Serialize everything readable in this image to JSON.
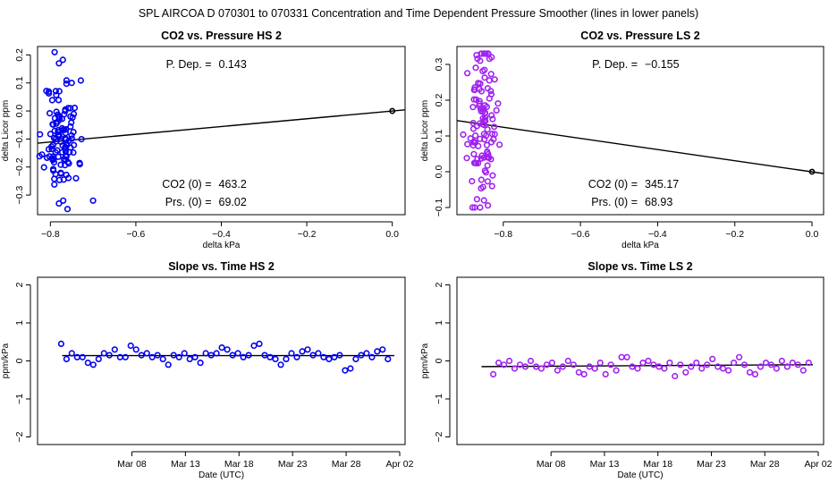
{
  "header": {
    "title": "SPL   AIRCOA D   070301 to 070331   Concentration and Time Dependent Pressure Smoother (lines in lower panels)"
  },
  "colors": {
    "hs": "#0000ee",
    "ls": "#a020f0",
    "line": "#000000"
  },
  "chart_data": [
    {
      "id": "co2_hs",
      "type": "scatter",
      "title": "CO2 vs. Pressure HS 2",
      "xlabel": "delta kPa",
      "ylabel": "delta Licor ppm",
      "xlim": [
        -0.83,
        0.03
      ],
      "ylim": [
        -0.37,
        0.23
      ],
      "xticks": [
        -0.8,
        -0.6,
        -0.4,
        -0.2,
        0.0
      ],
      "xtick_labels": [
        "−0.8",
        "−0.6",
        "−0.4",
        "−0.2",
        "0.0"
      ],
      "yticks": [
        -0.3,
        -0.2,
        -0.1,
        0.0,
        0.1,
        0.2
      ],
      "ytick_labels": [
        "−0.3",
        "−0.2",
        "−0.1",
        "0.0",
        "0.1",
        "0.2"
      ],
      "color_key": "hs",
      "fit_line": {
        "x": [
          -0.83,
          0.03
        ],
        "y": [
          -0.115,
          0.004
        ]
      },
      "origin_marker": {
        "x": 0.0,
        "y": 0.0
      },
      "cluster": {
        "x_mean": -0.775,
        "x_sd": 0.02,
        "y_mean": -0.09,
        "y_sd": 0.1,
        "count": 110,
        "seed": 11
      },
      "points": [
        {
          "x": -0.79,
          "y": 0.21
        },
        {
          "x": -0.78,
          "y": 0.17
        },
        {
          "x": -0.75,
          "y": 0.1
        },
        {
          "x": -0.7,
          "y": -0.32
        },
        {
          "x": -0.74,
          "y": -0.24
        },
        {
          "x": -0.77,
          "y": -0.32
        },
        {
          "x": -0.76,
          "y": -0.35
        },
        {
          "x": -0.78,
          "y": -0.33
        }
      ],
      "annotations": [
        {
          "label": "P. Dep. =",
          "value": "0.143",
          "pos": "top"
        },
        {
          "label": "CO2 (0) =",
          "value": "463.2",
          "pos": "bottom1"
        },
        {
          "label": "Prs. (0) =",
          "value": "69.02",
          "pos": "bottom2"
        }
      ]
    },
    {
      "id": "co2_ls",
      "type": "scatter",
      "title": "CO2 vs. Pressure LS 2",
      "xlabel": "delta kPa",
      "ylabel": "delta Licor ppm",
      "xlim": [
        -0.92,
        0.03
      ],
      "ylim": [
        -0.12,
        0.35
      ],
      "xticks": [
        -0.8,
        -0.6,
        -0.4,
        -0.2,
        0.0
      ],
      "xtick_labels": [
        "−0.8",
        "−0.6",
        "−0.4",
        "−0.2",
        "0.0"
      ],
      "yticks": [
        -0.1,
        0.0,
        0.1,
        0.2,
        0.3
      ],
      "ytick_labels": [
        "−0.1",
        "0.0",
        "0.1",
        "0.2",
        "0.3"
      ],
      "color_key": "ls",
      "fit_line": {
        "x": [
          -0.92,
          0.03
        ],
        "y": [
          0.143,
          -0.005
        ]
      },
      "origin_marker": {
        "x": 0.0,
        "y": 0.0
      },
      "cluster": {
        "x_mean": -0.855,
        "x_sd": 0.018,
        "y_mean": 0.13,
        "y_sd": 0.1,
        "count": 110,
        "seed": 23
      },
      "points": [
        {
          "x": -0.83,
          "y": 0.32
        },
        {
          "x": -0.84,
          "y": 0.33
        },
        {
          "x": -0.86,
          "y": 0.31
        },
        {
          "x": -0.88,
          "y": -0.1
        },
        {
          "x": -0.86,
          "y": -0.1
        },
        {
          "x": -0.85,
          "y": -0.08
        }
      ],
      "annotations": [
        {
          "label": "P. Dep. =",
          "value": "−0.155",
          "pos": "top"
        },
        {
          "label": "CO2 (0) =",
          "value": "345.17",
          "pos": "bottom1"
        },
        {
          "label": "Prs. (0) =",
          "value": "68.93",
          "pos": "bottom2"
        }
      ]
    },
    {
      "id": "slope_hs",
      "type": "scatter",
      "title": "Slope vs. Time HS 2",
      "xlabel": "Date (UTC)",
      "ylabel": "ppm/kPa",
      "xlim": [
        -1.8,
        32.5
      ],
      "ylim": [
        -2.2,
        2.2
      ],
      "xticks": [
        7,
        12,
        17,
        22,
        27,
        32
      ],
      "xtick_labels": [
        "Mar 08",
        "Mar 13",
        "Mar 18",
        "Mar 23",
        "Mar 28",
        "Apr 02"
      ],
      "yticks": [
        -2,
        -1,
        0,
        1,
        2
      ],
      "ytick_labels": [
        "−2",
        "−1",
        "0",
        "1",
        "2"
      ],
      "color_key": "hs",
      "fit_line": {
        "x": [
          0.5,
          31.5
        ],
        "y": [
          0.14,
          0.14
        ]
      },
      "series": {
        "x_start": 0.4,
        "x_step": 0.5,
        "count": 62,
        "values": [
          0.45,
          0.05,
          0.2,
          0.1,
          0.1,
          -0.05,
          -0.1,
          0.05,
          0.2,
          0.15,
          0.3,
          0.1,
          0.1,
          0.4,
          0.3,
          0.15,
          0.2,
          0.1,
          0.15,
          0.05,
          -0.1,
          0.15,
          0.1,
          0.2,
          0.05,
          0.1,
          -0.05,
          0.2,
          0.15,
          0.2,
          0.35,
          0.3,
          0.15,
          0.2,
          0.1,
          0.15,
          0.4,
          0.45,
          0.15,
          0.1,
          0.05,
          -0.1,
          0.05,
          0.2,
          0.1,
          0.25,
          0.3,
          0.15,
          0.2,
          0.1,
          0.05,
          0.1,
          0.15,
          -0.25,
          -0.2,
          0.05,
          0.15,
          0.2,
          0.1,
          0.25,
          0.3,
          0.05
        ]
      }
    },
    {
      "id": "slope_ls",
      "type": "scatter",
      "title": "Slope vs. Time LS 2",
      "xlabel": "Date (UTC)",
      "ylabel": "ppm/kPa",
      "xlim": [
        -1.8,
        32.5
      ],
      "ylim": [
        -2.2,
        2.2
      ],
      "xticks": [
        7,
        12,
        17,
        22,
        27,
        32
      ],
      "xtick_labels": [
        "Mar 08",
        "Mar 13",
        "Mar 18",
        "Mar 23",
        "Mar 28",
        "Apr 02"
      ],
      "yticks": [
        -2,
        -1,
        0,
        1,
        2
      ],
      "ytick_labels": [
        "−2",
        "−1",
        "0",
        "1",
        "2"
      ],
      "color_key": "ls",
      "fit_line": {
        "x": [
          0.5,
          31.5
        ],
        "y": [
          -0.15,
          -0.1
        ]
      },
      "series": {
        "x_start": 1.6,
        "x_step": 0.5,
        "count": 60,
        "values": [
          -0.35,
          -0.05,
          -0.1,
          0.0,
          -0.2,
          -0.1,
          -0.15,
          0.0,
          -0.15,
          -0.2,
          -0.1,
          -0.05,
          -0.25,
          -0.15,
          0.0,
          -0.1,
          -0.3,
          -0.35,
          -0.15,
          -0.2,
          -0.05,
          -0.35,
          -0.1,
          -0.25,
          0.1,
          0.1,
          -0.15,
          -0.2,
          -0.05,
          0.0,
          -0.1,
          -0.15,
          -0.2,
          -0.05,
          -0.4,
          -0.1,
          -0.3,
          -0.15,
          -0.05,
          -0.2,
          -0.1,
          0.05,
          -0.15,
          -0.2,
          -0.25,
          -0.05,
          0.1,
          -0.1,
          -0.3,
          -0.35,
          -0.15,
          -0.05,
          -0.1,
          -0.2,
          0.0,
          -0.15,
          -0.05,
          -0.1,
          -0.25,
          -0.05
        ]
      }
    }
  ]
}
